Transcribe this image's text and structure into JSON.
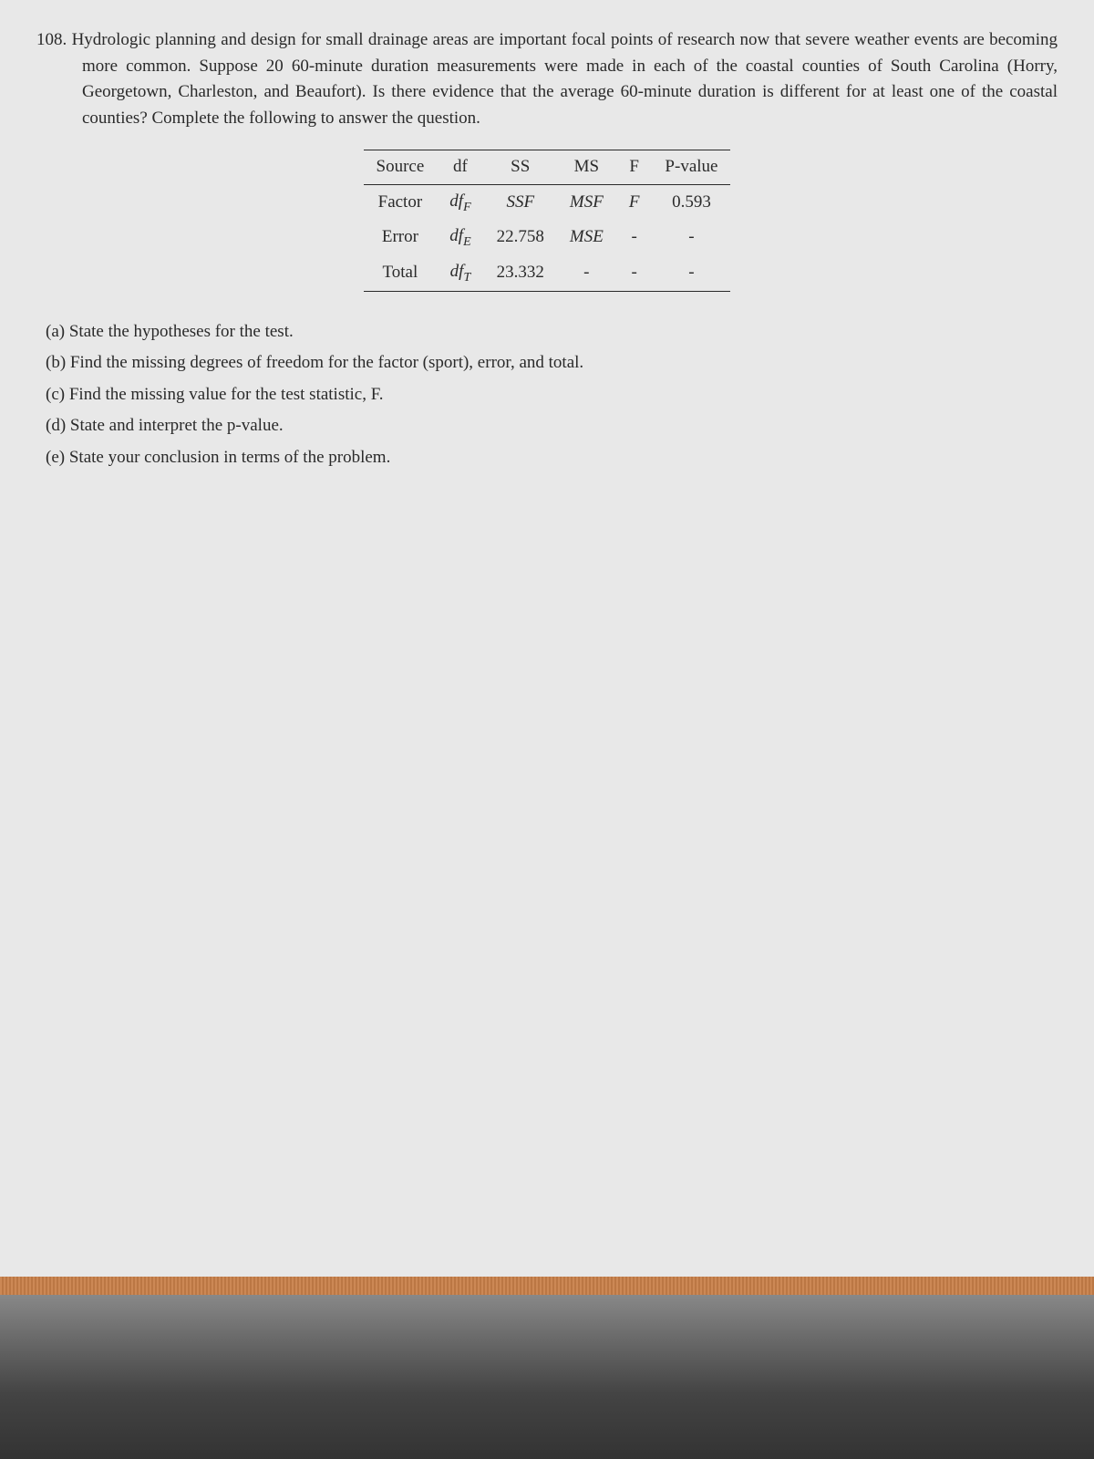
{
  "problem": {
    "number": "108.",
    "text": "Hydrologic planning and design for small drainage areas are important focal points of research now that severe weather events are becoming more common. Suppose 20 60-minute duration measurements were made in each of the coastal counties of South Carolina (Horry, Georgetown, Charleston, and Beaufort). Is there evidence that the average 60-minute duration is different for at least one of the coastal counties? Complete the following to answer the question."
  },
  "table": {
    "headers": [
      "Source",
      "df",
      "SS",
      "MS",
      "F",
      "P-value"
    ],
    "rows": [
      {
        "source": "Factor",
        "df": "dfF",
        "ss": "SSF",
        "ms": "MSF",
        "f": "F",
        "pvalue": "0.593"
      },
      {
        "source": "Error",
        "df": "dfE",
        "ss": "22.758",
        "ms": "MSE",
        "f": "-",
        "pvalue": "-"
      },
      {
        "source": "Total",
        "df": "dfT",
        "ss": "23.332",
        "ms": "-",
        "f": "-",
        "pvalue": "-"
      }
    ],
    "styling": {
      "border_color": "#2a2a2a",
      "font_size": 19,
      "cell_padding": "4px 14px"
    }
  },
  "questions": [
    {
      "label": "(a)",
      "text": "State the hypotheses for the test."
    },
    {
      "label": "(b)",
      "text": "Find the missing degrees of freedom for the factor (sport), error, and total."
    },
    {
      "label": "(c)",
      "text": "Find the missing value for the test statistic, F."
    },
    {
      "label": "(d)",
      "text": "State and interpret the p-value."
    },
    {
      "label": "(e)",
      "text": "State your conclusion in terms of the problem."
    }
  ],
  "colors": {
    "background": "#e8e8e8",
    "text": "#2a2a2a"
  }
}
